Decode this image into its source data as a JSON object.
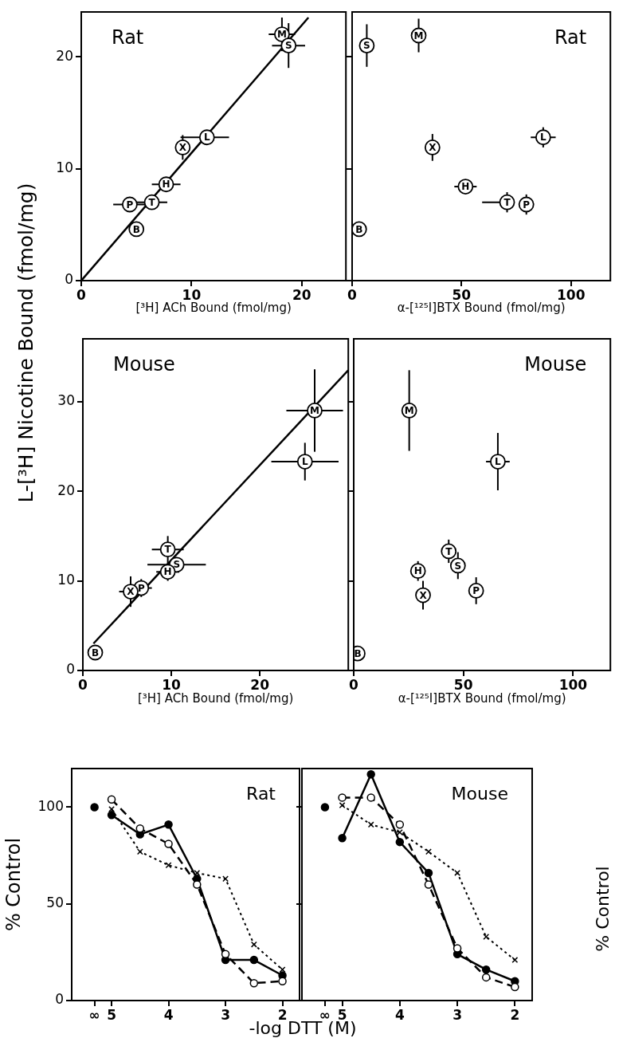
{
  "chart_data": [
    {
      "type": "scatter",
      "title": "Rat",
      "xlabel": "[³H] ACh Bound (fmol/mg)",
      "ylabel": "L-[³H] Nicotine Bound (fmol/mg)",
      "xlim": [
        0,
        24
      ],
      "ylim": [
        0,
        24
      ],
      "xticks": [
        0,
        10,
        20
      ],
      "yticks": [
        0,
        10,
        20
      ],
      "grid": false,
      "legend": false,
      "marker": "circle",
      "series": [
        {
          "type": "line",
          "marker": "none",
          "line_style": "solid",
          "color": "#000000",
          "x": [
            0,
            20.6
          ],
          "values": [
            0,
            23.5
          ]
        },
        {
          "name": "M",
          "color": "#000000",
          "x": [
            18.2
          ],
          "values": [
            22.0
          ],
          "xerrors": [
            1.2
          ],
          "errors": [
            1.5
          ]
        },
        {
          "name": "S",
          "color": "#000000",
          "x": [
            18.8
          ],
          "values": [
            21.0
          ],
          "xerrors": [
            1.5
          ],
          "errors": [
            2.0
          ]
        },
        {
          "name": "L",
          "color": "#000000",
          "x": [
            11.4
          ],
          "values": [
            12.8
          ],
          "xerrors": [
            [
              9.0,
              13.4
            ]
          ],
          "errors": [
            null
          ]
        },
        {
          "name": "X",
          "color": "#000000",
          "x": [
            9.2
          ],
          "values": [
            11.9
          ],
          "xerrors": [
            0.5
          ],
          "errors": [
            1.1
          ]
        },
        {
          "name": "H",
          "color": "#000000",
          "x": [
            7.7
          ],
          "values": [
            8.6
          ],
          "xerrors": [
            1.3
          ],
          "errors": [
            null
          ]
        },
        {
          "name": "T",
          "color": "#000000",
          "x": [
            6.4
          ],
          "values": [
            7.0
          ],
          "xerrors": [
            1.4
          ],
          "errors": [
            0.5
          ]
        },
        {
          "name": "P",
          "color": "#000000",
          "x": [
            4.4
          ],
          "values": [
            6.8
          ],
          "xerrors": [
            1.5
          ],
          "errors": [
            null
          ]
        },
        {
          "name": "B",
          "color": "#000000",
          "x": [
            5.0
          ],
          "values": [
            4.6
          ]
        }
      ]
    },
    {
      "type": "scatter",
      "title": "Rat",
      "xlabel": "α-[¹²⁵I]BTX Bound (fmol/mg)",
      "xlim": [
        0,
        118
      ],
      "ylim": [
        0,
        24
      ],
      "xticks": [
        0,
        50,
        100
      ],
      "yticks": [
        0,
        10,
        20
      ],
      "tick_labels": "x",
      "grid": false,
      "legend": false,
      "marker": "circle",
      "series": [
        {
          "name": "S",
          "color": "#000000",
          "x": [
            6.7
          ],
          "values": [
            21.0
          ],
          "errors": [
            1.9
          ]
        },
        {
          "name": "M",
          "color": "#000000",
          "x": [
            30.4
          ],
          "values": [
            21.9
          ],
          "errors": [
            1.5
          ]
        },
        {
          "name": "X",
          "color": "#000000",
          "x": [
            36.7
          ],
          "values": [
            11.9
          ],
          "errors": [
            1.2
          ]
        },
        {
          "name": "L",
          "color": "#000000",
          "x": [
            87.3
          ],
          "values": [
            12.8
          ],
          "xerrors": [
            5.7
          ],
          "errors": [
            0.9
          ]
        },
        {
          "name": "H",
          "color": "#000000",
          "x": [
            51.8
          ],
          "values": [
            8.4
          ],
          "xerrors": [
            5.1
          ]
        },
        {
          "name": "T",
          "color": "#000000",
          "x": [
            70.8
          ],
          "values": [
            7.0
          ],
          "xerrors": [
            [
              59.4,
              73.0
            ]
          ],
          "errors": [
            0.9
          ]
        },
        {
          "name": "P",
          "color": "#000000",
          "x": [
            79.6
          ],
          "values": [
            6.8
          ],
          "xerrors": [
            3.0
          ],
          "errors": [
            0.9
          ]
        },
        {
          "name": "B",
          "color": "#000000",
          "x": [
            3.2
          ],
          "values": [
            4.6
          ]
        }
      ]
    },
    {
      "type": "scatter",
      "title": "Mouse",
      "xlabel": "[³H] ACh Bound (fmol/mg)",
      "xlim": [
        0,
        30
      ],
      "ylim": [
        0,
        37
      ],
      "xticks": [
        0,
        10,
        20
      ],
      "yticks": [
        0,
        10,
        20,
        30
      ],
      "grid": false,
      "legend": false,
      "marker": "circle",
      "series": [
        {
          "type": "line",
          "marker": "none",
          "line_style": "solid",
          "color": "#000000",
          "x": [
            1.2,
            30
          ],
          "values": [
            3.0,
            33.5
          ]
        },
        {
          "name": "M",
          "color": "#000000",
          "x": [
            26.2
          ],
          "values": [
            29.0
          ],
          "xerrors": [
            3.2
          ],
          "errors": [
            4.6
          ]
        },
        {
          "name": "L",
          "color": "#000000",
          "x": [
            25.1
          ],
          "values": [
            23.3
          ],
          "xerrors": [
            3.8
          ],
          "errors": [
            2.1
          ]
        },
        {
          "name": "T",
          "color": "#000000",
          "x": [
            9.6
          ],
          "values": [
            13.5
          ],
          "xerrors": [
            1.8
          ],
          "errors": [
            1.5
          ]
        },
        {
          "name": "S",
          "color": "#000000",
          "x": [
            10.6
          ],
          "values": [
            11.8
          ],
          "xerrors": [
            3.3
          ],
          "errors": [
            0.8
          ]
        },
        {
          "name": "H",
          "color": "#000000",
          "x": [
            9.6
          ],
          "values": [
            11.0
          ],
          "xerrors": [
            1.3
          ],
          "errors": [
            1.0
          ]
        },
        {
          "name": "P",
          "color": "#000000",
          "x": [
            6.6
          ],
          "values": [
            9.2
          ],
          "xerrors": [
            1.2
          ],
          "errors": [
            1.0
          ]
        },
        {
          "name": "X",
          "color": "#000000",
          "x": [
            5.4
          ],
          "values": [
            8.8
          ],
          "xerrors": [
            1.3
          ],
          "errors": [
            1.7
          ]
        },
        {
          "name": "B",
          "color": "#000000",
          "x": [
            1.4
          ],
          "values": [
            2.0
          ]
        }
      ]
    },
    {
      "type": "scatter",
      "title": "Mouse",
      "xlabel": "α-[¹²⁵I]BTX Bound (fmol/mg)",
      "xlim": [
        0,
        117
      ],
      "ylim": [
        0,
        37
      ],
      "xticks": [
        0,
        50,
        100
      ],
      "yticks": [
        0,
        10,
        20,
        30
      ],
      "tick_labels": "x",
      "grid": false,
      "legend": false,
      "marker": "circle",
      "series": [
        {
          "name": "M",
          "color": "#000000",
          "x": [
            25.3
          ],
          "values": [
            29.0
          ],
          "errors": [
            4.5
          ]
        },
        {
          "name": "L",
          "color": "#000000",
          "x": [
            65.7
          ],
          "values": [
            23.3
          ],
          "xerrors": [
            5.4
          ],
          "errors": [
            3.2
          ]
        },
        {
          "name": "T",
          "color": "#000000",
          "x": [
            43.3
          ],
          "values": [
            13.3
          ],
          "errors": [
            1.3
          ]
        },
        {
          "name": "S",
          "color": "#000000",
          "x": [
            47.5
          ],
          "values": [
            11.7
          ],
          "errors": [
            1.5
          ]
        },
        {
          "name": "H",
          "color": "#000000",
          "x": [
            29.3
          ],
          "values": [
            11.1
          ],
          "xerrors": [
            1.5
          ],
          "errors": [
            1.1
          ]
        },
        {
          "name": "X",
          "color": "#000000",
          "x": [
            31.6
          ],
          "values": [
            8.4
          ],
          "errors": [
            1.6
          ]
        },
        {
          "name": "P",
          "color": "#000000",
          "x": [
            55.8
          ],
          "values": [
            8.9
          ],
          "errors": [
            1.5
          ]
        },
        {
          "name": "B",
          "color": "#000000",
          "x": [
            1.8
          ],
          "values": [
            1.9
          ]
        }
      ]
    },
    {
      "type": "line",
      "title": "Rat",
      "xlabel": "-log DTT (M)",
      "ylabel": "% Control",
      "x": [
        5,
        4.5,
        4,
        3.5,
        3,
        2.5,
        2
      ],
      "xlim": [
        5.7,
        1.7
      ],
      "ylim": [
        0,
        120
      ],
      "xticks": [
        {
          "value": 5.3,
          "label": "∞"
        },
        5,
        4,
        3,
        2
      ],
      "yticks": [
        0,
        50,
        100
      ],
      "grid": false,
      "legend": false,
      "series": [
        {
          "type": "scatter",
          "marker": "circle",
          "color": "#000000",
          "x": [
            5.3
          ],
          "values": [
            100
          ]
        },
        {
          "marker": "circle",
          "line_style": "solid",
          "color": "#000000",
          "values": [
            96,
            86,
            91,
            63,
            21,
            21,
            13
          ]
        },
        {
          "marker": "circle",
          "line_style": "dashed",
          "color": "#000000",
          "values": [
            104,
            89,
            81,
            60,
            24,
            9,
            10
          ]
        },
        {
          "marker": "cross",
          "line_style": "dotted",
          "color": "#000000",
          "values": [
            99,
            77,
            70,
            66,
            63,
            29,
            16
          ]
        }
      ]
    },
    {
      "type": "line",
      "title": "Mouse",
      "x": [
        5,
        4.5,
        4,
        3.5,
        3,
        2.5,
        2
      ],
      "xlim": [
        5.7,
        1.7
      ],
      "ylim": [
        0,
        120
      ],
      "xticks": [
        {
          "value": 5.3,
          "label": "∞"
        },
        5,
        4,
        3,
        2
      ],
      "yticks": [
        0,
        50,
        100
      ],
      "tick_labels": "x",
      "grid": false,
      "legend": false,
      "series": [
        {
          "type": "scatter",
          "marker": "circle",
          "color": "#000000",
          "x": [
            5.3
          ],
          "values": [
            100
          ]
        },
        {
          "marker": "circle",
          "line_style": "solid",
          "color": "#000000",
          "values": [
            84,
            117,
            82,
            66,
            24,
            16,
            10
          ]
        },
        {
          "marker": "circle",
          "line_style": "dashed",
          "color": "#000000",
          "values": [
            105,
            105,
            91,
            60,
            27,
            12,
            7
          ]
        },
        {
          "marker": "cross",
          "line_style": "dotted",
          "color": "#000000",
          "values": [
            101,
            91,
            87,
            77,
            66,
            33,
            21
          ]
        }
      ]
    },
    {
      "type": "other",
      "ylabel": "% Control"
    }
  ]
}
